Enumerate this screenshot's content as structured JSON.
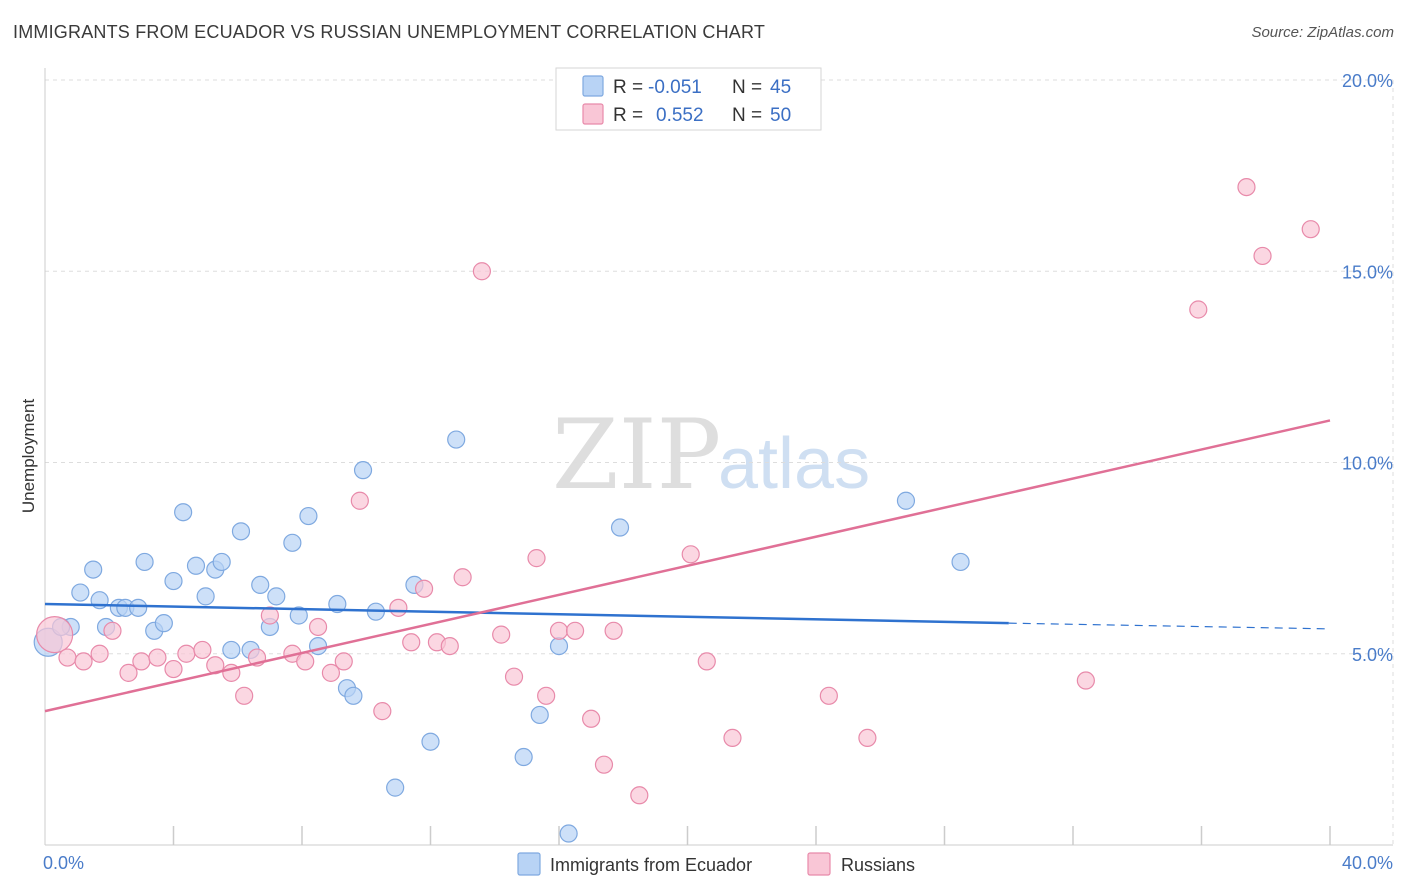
{
  "header": {
    "title": "IMMIGRANTS FROM ECUADOR VS RUSSIAN UNEMPLOYMENT CORRELATION CHART",
    "source": "Source: ZipAtlas.com"
  },
  "watermark": {
    "zip": "ZIP",
    "atlas": "atlas"
  },
  "colors": {
    "ecuador_fill": "#b8d3f5",
    "ecuador_stroke": "#7fa9e0",
    "ecuador_line": "#2f72cf",
    "russian_fill": "#f9c6d6",
    "russian_stroke": "#e88aaa",
    "russian_line": "#e07096",
    "tick_text": "#4a7cc9",
    "grid": "#dddddd"
  },
  "legend": {
    "rows": [
      {
        "r_label": "R =",
        "r_value": "-0.051",
        "n_label": "N =",
        "n_value": "45"
      },
      {
        "r_label": "R =",
        "r_value": "0.552",
        "n_label": "N =",
        "n_value": "50"
      }
    ]
  },
  "chart_data": {
    "type": "scatter",
    "title": "IMMIGRANTS FROM ECUADOR VS RUSSIAN UNEMPLOYMENT CORRELATION CHART",
    "xlabel": "",
    "ylabel": "Unemployment",
    "xlim": [
      0,
      40
    ],
    "ylim": [
      0,
      20
    ],
    "x_tick_labels": [
      "0.0%",
      "40.0%"
    ],
    "y_ticks": [
      5,
      10,
      15,
      20
    ],
    "y_tick_labels": [
      "5.0%",
      "10.0%",
      "15.0%",
      "20.0%"
    ],
    "grid": true,
    "legend_position": "bottom",
    "series": [
      {
        "name": "Immigrants from Ecuador",
        "r": -0.051,
        "n": 45,
        "trend": {
          "x0": 0,
          "y0": 6.3,
          "x1": 30,
          "y1": 5.8,
          "dash_to_x": 40,
          "dash_to_y": 5.65
        },
        "points": [
          [
            0.1,
            5.3
          ],
          [
            0.8,
            5.7
          ],
          [
            0.5,
            5.7
          ],
          [
            1.1,
            6.6
          ],
          [
            1.5,
            7.2
          ],
          [
            1.7,
            6.4
          ],
          [
            1.9,
            5.7
          ],
          [
            2.3,
            6.2
          ],
          [
            2.5,
            6.2
          ],
          [
            2.9,
            6.2
          ],
          [
            3.1,
            7.4
          ],
          [
            3.4,
            5.6
          ],
          [
            3.7,
            5.8
          ],
          [
            4.0,
            6.9
          ],
          [
            4.3,
            8.7
          ],
          [
            4.7,
            7.3
          ],
          [
            5.0,
            6.5
          ],
          [
            5.3,
            7.2
          ],
          [
            5.5,
            7.4
          ],
          [
            5.8,
            5.1
          ],
          [
            6.1,
            8.2
          ],
          [
            6.4,
            5.1
          ],
          [
            6.7,
            6.8
          ],
          [
            7.0,
            5.7
          ],
          [
            7.2,
            6.5
          ],
          [
            7.7,
            7.9
          ],
          [
            7.9,
            6.0
          ],
          [
            8.2,
            8.6
          ],
          [
            8.5,
            5.2
          ],
          [
            9.1,
            6.3
          ],
          [
            9.4,
            4.1
          ],
          [
            9.6,
            3.9
          ],
          [
            9.9,
            9.8
          ],
          [
            10.3,
            6.1
          ],
          [
            10.9,
            1.5
          ],
          [
            11.5,
            6.8
          ],
          [
            12.0,
            2.7
          ],
          [
            12.8,
            10.6
          ],
          [
            14.9,
            2.3
          ],
          [
            15.4,
            3.4
          ],
          [
            16.0,
            5.2
          ],
          [
            16.3,
            0.3
          ],
          [
            17.9,
            8.3
          ],
          [
            26.8,
            9.0
          ],
          [
            28.5,
            7.4
          ]
        ]
      },
      {
        "name": "Russians",
        "r": 0.552,
        "n": 50,
        "trend": {
          "x0": 0,
          "y0": 3.5,
          "x1": 40,
          "y1": 11.1
        },
        "points": [
          [
            0.3,
            5.5
          ],
          [
            0.7,
            4.9
          ],
          [
            1.2,
            4.8
          ],
          [
            1.7,
            5.0
          ],
          [
            2.1,
            5.6
          ],
          [
            2.6,
            4.5
          ],
          [
            3.0,
            4.8
          ],
          [
            3.5,
            4.9
          ],
          [
            4.0,
            4.6
          ],
          [
            4.4,
            5.0
          ],
          [
            4.9,
            5.1
          ],
          [
            5.3,
            4.7
          ],
          [
            5.8,
            4.5
          ],
          [
            6.2,
            3.9
          ],
          [
            6.6,
            4.9
          ],
          [
            7.0,
            6.0
          ],
          [
            7.7,
            5.0
          ],
          [
            8.1,
            4.8
          ],
          [
            8.5,
            5.7
          ],
          [
            8.9,
            4.5
          ],
          [
            9.3,
            4.8
          ],
          [
            9.8,
            9.0
          ],
          [
            10.5,
            3.5
          ],
          [
            11.0,
            6.2
          ],
          [
            11.4,
            5.3
          ],
          [
            11.8,
            6.7
          ],
          [
            12.2,
            5.3
          ],
          [
            12.6,
            5.2
          ],
          [
            13.0,
            7.0
          ],
          [
            13.6,
            15.0
          ],
          [
            14.2,
            5.5
          ],
          [
            14.6,
            4.4
          ],
          [
            15.3,
            7.5
          ],
          [
            15.6,
            3.9
          ],
          [
            16.0,
            5.6
          ],
          [
            16.5,
            5.6
          ],
          [
            17.0,
            3.3
          ],
          [
            17.4,
            2.1
          ],
          [
            17.7,
            5.6
          ],
          [
            18.5,
            1.3
          ],
          [
            20.1,
            7.6
          ],
          [
            20.6,
            4.8
          ],
          [
            21.4,
            2.8
          ],
          [
            24.4,
            3.9
          ],
          [
            25.6,
            2.8
          ],
          [
            32.4,
            4.3
          ],
          [
            35.9,
            14.0
          ],
          [
            37.4,
            17.2
          ],
          [
            37.9,
            15.4
          ],
          [
            39.4,
            16.1
          ]
        ]
      }
    ]
  }
}
